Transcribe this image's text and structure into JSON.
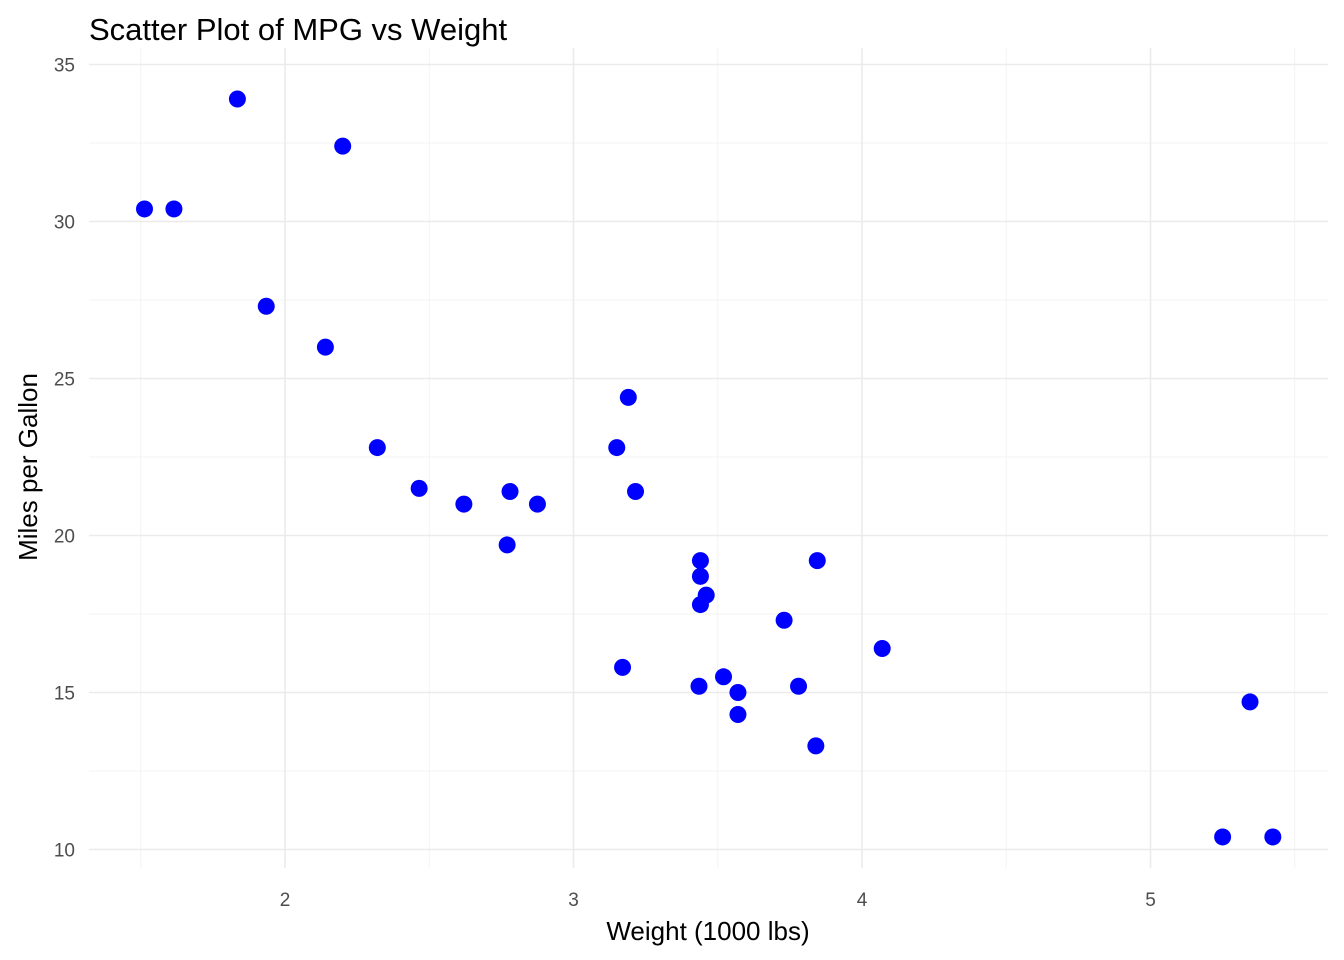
{
  "colors": {
    "point": "#0000ff",
    "grid_major": "#ebebeb",
    "grid_minor": "#f3f3f3",
    "tick_text": "#4d4d4d",
    "title_text": "#000000",
    "background": "#ffffff"
  },
  "chart_data": {
    "type": "scatter",
    "title": "Scatter Plot of MPG vs Weight",
    "xlabel": "Weight (1000 lbs)",
    "ylabel": "Miles per Gallon",
    "xlim": [
      1.5,
      5.5
    ],
    "ylim": [
      10,
      35
    ],
    "x_ticks": [
      2,
      3,
      4,
      5
    ],
    "y_ticks": [
      10,
      15,
      20,
      25,
      30,
      35
    ],
    "x_minor_ticks": [
      1.5,
      2.5,
      3.5,
      4.5,
      5.5
    ],
    "y_minor_ticks": [
      12.5,
      17.5,
      22.5,
      27.5,
      32.5
    ],
    "grid": true,
    "legend": "none",
    "points": [
      {
        "x": 2.62,
        "y": 21.0
      },
      {
        "x": 2.875,
        "y": 21.0
      },
      {
        "x": 2.32,
        "y": 22.8
      },
      {
        "x": 3.215,
        "y": 21.4
      },
      {
        "x": 3.44,
        "y": 18.7
      },
      {
        "x": 3.46,
        "y": 18.1
      },
      {
        "x": 3.57,
        "y": 14.3
      },
      {
        "x": 3.19,
        "y": 24.4
      },
      {
        "x": 3.15,
        "y": 22.8
      },
      {
        "x": 3.44,
        "y": 19.2
      },
      {
        "x": 3.44,
        "y": 17.8
      },
      {
        "x": 4.07,
        "y": 16.4
      },
      {
        "x": 3.73,
        "y": 17.3
      },
      {
        "x": 3.78,
        "y": 15.2
      },
      {
        "x": 5.25,
        "y": 10.4
      },
      {
        "x": 5.424,
        "y": 10.4
      },
      {
        "x": 5.345,
        "y": 14.7
      },
      {
        "x": 2.2,
        "y": 32.4
      },
      {
        "x": 1.615,
        "y": 30.4
      },
      {
        "x": 1.835,
        "y": 33.9
      },
      {
        "x": 2.465,
        "y": 21.5
      },
      {
        "x": 3.52,
        "y": 15.5
      },
      {
        "x": 3.435,
        "y": 15.2
      },
      {
        "x": 3.84,
        "y": 13.3
      },
      {
        "x": 3.845,
        "y": 19.2
      },
      {
        "x": 1.935,
        "y": 27.3
      },
      {
        "x": 2.14,
        "y": 26.0
      },
      {
        "x": 1.513,
        "y": 30.4
      },
      {
        "x": 3.17,
        "y": 15.8
      },
      {
        "x": 2.77,
        "y": 19.7
      },
      {
        "x": 3.57,
        "y": 15.0
      },
      {
        "x": 2.78,
        "y": 21.4
      }
    ]
  }
}
